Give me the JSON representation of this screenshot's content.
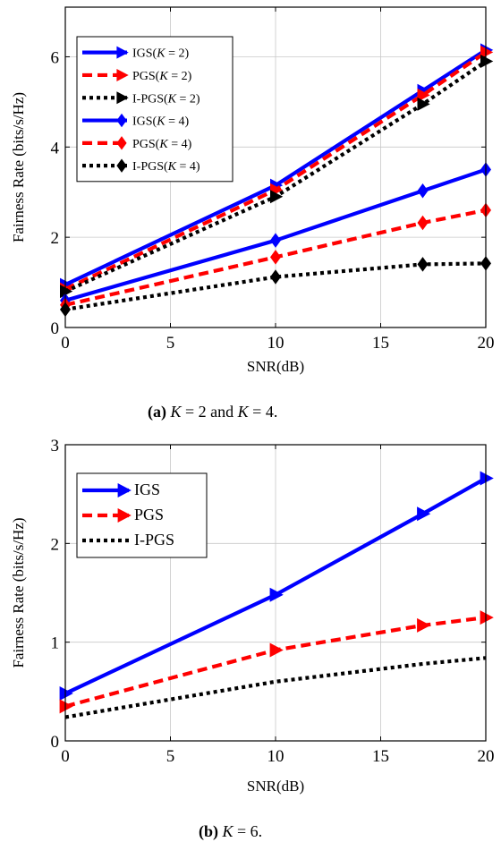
{
  "chart_data": [
    {
      "type": "line",
      "xlabel": "SNR(dB)",
      "ylabel": "Fairness Rate (bits/s/Hz)",
      "xlim": [
        0,
        20
      ],
      "ylim": [
        0,
        7.1
      ],
      "xticks": [
        0,
        5,
        10,
        15,
        20
      ],
      "yticks": [
        0,
        2,
        4,
        6
      ],
      "grid": true,
      "legend_position": "top-left",
      "caption": {
        "label": "(a)",
        "text": "K = 2 and K = 4."
      },
      "series": [
        {
          "name": "IGS(K = 2)",
          "color": "#0000ff",
          "dash": "solid",
          "marker": "triangle-right",
          "x": [
            0,
            10,
            17,
            20
          ],
          "y": [
            0.95,
            3.15,
            5.25,
            6.15
          ]
        },
        {
          "name": "PGS(K = 2)",
          "color": "#ff0000",
          "dash": "dashed",
          "marker": "triangle-right",
          "x": [
            0,
            10,
            17,
            20
          ],
          "y": [
            0.85,
            3.05,
            5.15,
            6.1
          ]
        },
        {
          "name": "I-PGS(K = 2)",
          "color": "#000000",
          "dash": "dotted",
          "marker": "triangle-right",
          "x": [
            0,
            10,
            17,
            20
          ],
          "y": [
            0.8,
            2.9,
            4.95,
            5.9
          ]
        },
        {
          "name": "IGS(K = 4)",
          "color": "#0000ff",
          "dash": "solid",
          "marker": "diamond",
          "x": [
            0,
            10,
            17,
            20
          ],
          "y": [
            0.6,
            1.93,
            3.03,
            3.5
          ]
        },
        {
          "name": "PGS(K = 4)",
          "color": "#ff0000",
          "dash": "dashed",
          "marker": "diamond",
          "x": [
            0,
            10,
            17,
            20
          ],
          "y": [
            0.5,
            1.56,
            2.32,
            2.6
          ]
        },
        {
          "name": "I-PGS(K = 4)",
          "color": "#000000",
          "dash": "dotted",
          "marker": "diamond",
          "x": [
            0,
            10,
            17,
            20
          ],
          "y": [
            0.4,
            1.12,
            1.4,
            1.42
          ]
        }
      ]
    },
    {
      "type": "line",
      "xlabel": "SNR(dB)",
      "ylabel": "Fairness Rate (bits/s/Hz)",
      "xlim": [
        0,
        20
      ],
      "ylim": [
        0,
        3
      ],
      "xticks": [
        0,
        5,
        10,
        15,
        20
      ],
      "yticks": [
        0,
        1,
        2,
        3
      ],
      "grid": true,
      "legend_position": "top-left",
      "caption": {
        "label": "(b)",
        "text": "K = 6."
      },
      "series": [
        {
          "name": "IGS",
          "color": "#0000ff",
          "dash": "solid",
          "marker": "triangle-right",
          "x": [
            0,
            10,
            17,
            20
          ],
          "y": [
            0.48,
            1.48,
            2.3,
            2.66
          ]
        },
        {
          "name": "PGS",
          "color": "#ff0000",
          "dash": "dashed",
          "marker": "triangle-right",
          "x": [
            0,
            10,
            17,
            20
          ],
          "y": [
            0.35,
            0.92,
            1.17,
            1.25
          ]
        },
        {
          "name": "I-PGS",
          "color": "#000000",
          "dash": "dotted",
          "marker": "none",
          "x": [
            0,
            10,
            17,
            20
          ],
          "y": [
            0.24,
            0.6,
            0.78,
            0.84
          ]
        }
      ]
    }
  ]
}
